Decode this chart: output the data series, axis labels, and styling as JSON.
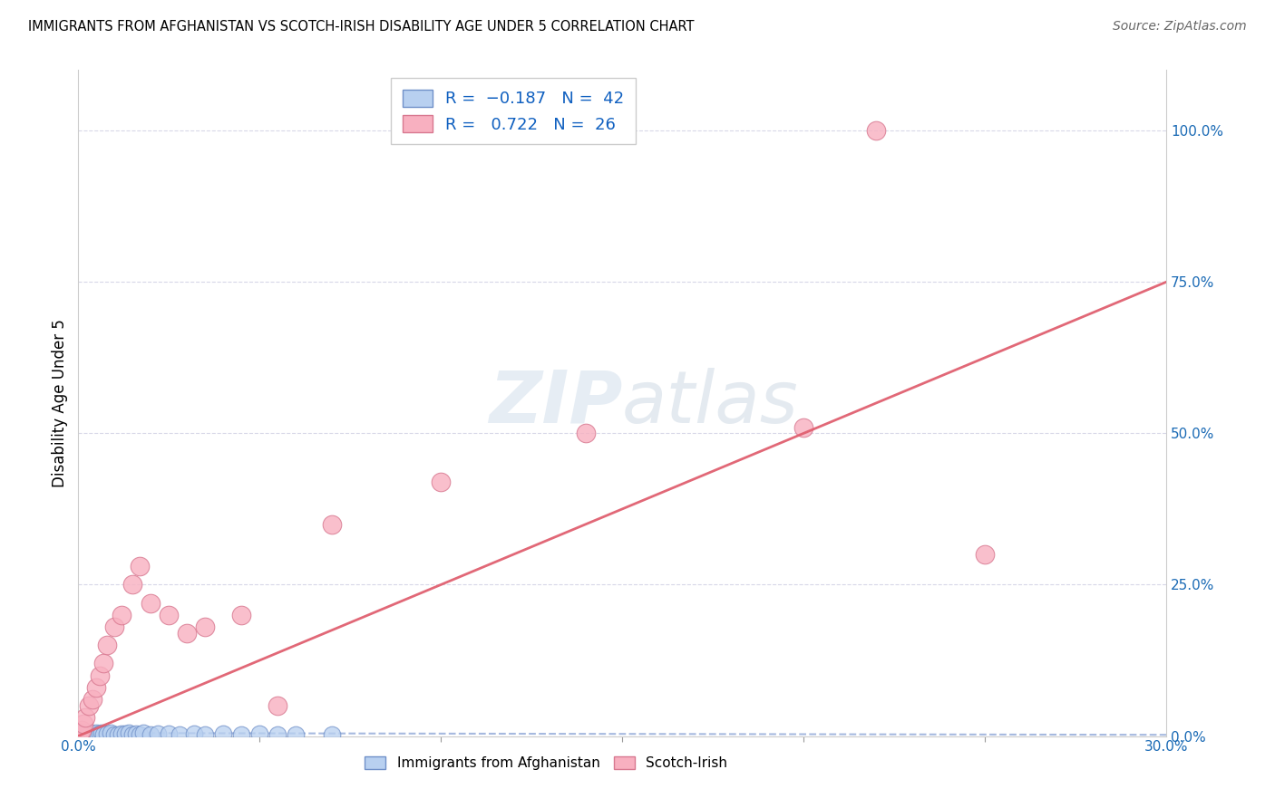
{
  "title": "IMMIGRANTS FROM AFGHANISTAN VS SCOTCH-IRISH DISABILITY AGE UNDER 5 CORRELATION CHART",
  "source": "Source: ZipAtlas.com",
  "ylabel": "Disability Age Under 5",
  "right_ytick_labels": [
    "0.0%",
    "25.0%",
    "50.0%",
    "75.0%",
    "100.0%"
  ],
  "right_ytick_values": [
    0,
    25,
    50,
    75,
    100
  ],
  "xlim": [
    0,
    30
  ],
  "ylim": [
    0,
    110
  ],
  "afghanistan_color": "#b8d0f0",
  "afghanistan_edge": "#7090c8",
  "scotch_irish_color": "#f8b0c0",
  "scotch_irish_edge": "#d87890",
  "regression_color_afghanistan": "#90a8d8",
  "regression_color_scotch_irish": "#e06070",
  "watermark": "ZIPatlas",
  "legend_text_color": "#1060c0",
  "afghanistan_x": [
    0.05,
    0.08,
    0.1,
    0.12,
    0.15,
    0.18,
    0.2,
    0.22,
    0.25,
    0.28,
    0.3,
    0.35,
    0.4,
    0.45,
    0.5,
    0.55,
    0.6,
    0.65,
    0.7,
    0.8,
    0.9,
    1.0,
    1.1,
    1.2,
    1.3,
    1.4,
    1.5,
    1.6,
    1.7,
    1.8,
    2.0,
    2.2,
    2.5,
    2.8,
    3.2,
    3.5,
    4.0,
    4.5,
    5.0,
    5.5,
    6.0,
    7.0
  ],
  "afghanistan_y": [
    0.3,
    0.2,
    0.4,
    0.3,
    0.5,
    0.3,
    0.4,
    0.3,
    0.4,
    0.5,
    0.4,
    0.6,
    0.2,
    0.4,
    0.5,
    0.3,
    0.4,
    0.5,
    0.3,
    0.4,
    0.5,
    0.3,
    0.3,
    0.4,
    0.4,
    0.5,
    0.3,
    0.4,
    0.3,
    0.5,
    0.3,
    0.4,
    0.4,
    0.3,
    0.4,
    0.3,
    0.4,
    0.3,
    0.4,
    0.3,
    0.3,
    0.3
  ],
  "scotch_irish_x": [
    0.05,
    0.1,
    0.15,
    0.2,
    0.3,
    0.4,
    0.5,
    0.6,
    0.7,
    0.8,
    1.0,
    1.2,
    1.5,
    1.7,
    2.0,
    2.5,
    3.0,
    3.5,
    4.5,
    5.5,
    7.0,
    10.0,
    14.0,
    20.0,
    22.0,
    25.0
  ],
  "scotch_irish_y": [
    0.5,
    1.0,
    2.0,
    3.0,
    5.0,
    6.0,
    8.0,
    10.0,
    12.0,
    15.0,
    18.0,
    20.0,
    25.0,
    28.0,
    22.0,
    20.0,
    17.0,
    18.0,
    20.0,
    5.0,
    35.0,
    42.0,
    50.0,
    51.0,
    100.0,
    30.0
  ],
  "grid_color": "#d8d8e8",
  "spine_color": "#cccccc"
}
